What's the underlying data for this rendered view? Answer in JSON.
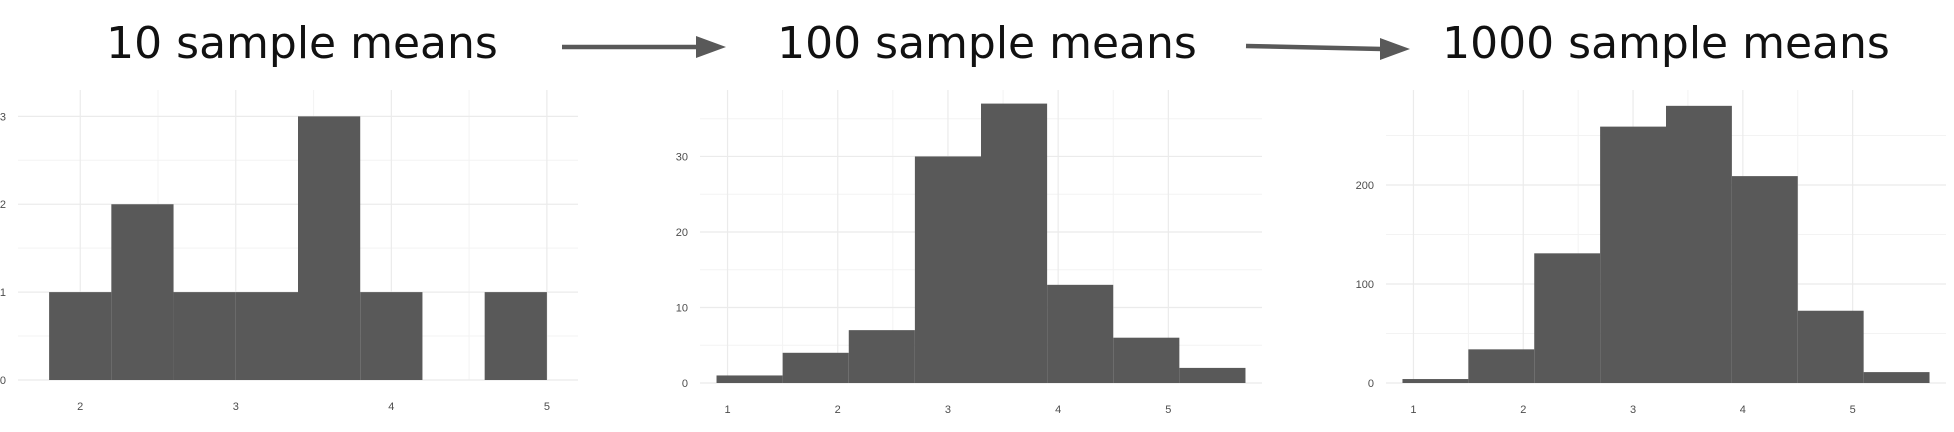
{
  "chart_data": [
    {
      "type": "bar",
      "title": "10 sample means",
      "xlabel": "",
      "ylabel": "",
      "bins": [
        {
          "x0": 1.8,
          "x1": 2.2,
          "count": 1
        },
        {
          "x0": 2.2,
          "x1": 2.6,
          "count": 2
        },
        {
          "x0": 2.6,
          "x1": 3.0,
          "count": 1
        },
        {
          "x0": 3.0,
          "x1": 3.4,
          "count": 1
        },
        {
          "x0": 3.4,
          "x1": 3.8,
          "count": 3
        },
        {
          "x0": 3.8,
          "x1": 4.2,
          "count": 1
        },
        {
          "x0": 4.2,
          "x1": 4.6,
          "count": 0
        },
        {
          "x0": 4.6,
          "x1": 5.0,
          "count": 1
        }
      ],
      "xticks": [
        2,
        3,
        4,
        5
      ],
      "yticks": [
        0,
        1,
        2,
        3
      ],
      "xlim": [
        1.6,
        5.2
      ],
      "ylim": [
        0,
        3.3
      ],
      "grid": true
    },
    {
      "type": "bar",
      "title": "100 sample means",
      "xlabel": "",
      "ylabel": "",
      "bins": [
        {
          "x0": 0.9,
          "x1": 1.5,
          "count": 1
        },
        {
          "x0": 1.5,
          "x1": 2.1,
          "count": 4
        },
        {
          "x0": 2.1,
          "x1": 2.7,
          "count": 7
        },
        {
          "x0": 2.7,
          "x1": 3.3,
          "count": 30
        },
        {
          "x0": 3.3,
          "x1": 3.9,
          "count": 37
        },
        {
          "x0": 3.9,
          "x1": 4.5,
          "count": 13
        },
        {
          "x0": 4.5,
          "x1": 5.1,
          "count": 6
        },
        {
          "x0": 5.1,
          "x1": 5.7,
          "count": 2
        }
      ],
      "xticks": [
        1,
        2,
        3,
        4,
        5
      ],
      "yticks": [
        0,
        10,
        20,
        30
      ],
      "xlim": [
        0.75,
        5.85
      ],
      "ylim": [
        0,
        38.8
      ],
      "grid": true
    },
    {
      "type": "bar",
      "title": "1000 sample means",
      "xlabel": "",
      "ylabel": "",
      "bins": [
        {
          "x0": 0.9,
          "x1": 1.5,
          "count": 4
        },
        {
          "x0": 1.5,
          "x1": 2.1,
          "count": 34
        },
        {
          "x0": 2.1,
          "x1": 2.7,
          "count": 131
        },
        {
          "x0": 2.7,
          "x1": 3.3,
          "count": 259
        },
        {
          "x0": 3.3,
          "x1": 3.9,
          "count": 280
        },
        {
          "x0": 3.9,
          "x1": 4.5,
          "count": 209
        },
        {
          "x0": 4.5,
          "x1": 5.1,
          "count": 73
        },
        {
          "x0": 5.1,
          "x1": 5.7,
          "count": 11
        }
      ],
      "xticks": [
        1,
        2,
        3,
        4,
        5
      ],
      "yticks": [
        0,
        100,
        200
      ],
      "xlim": [
        0.75,
        5.85
      ],
      "ylim": [
        0,
        296
      ],
      "grid": true
    }
  ]
}
